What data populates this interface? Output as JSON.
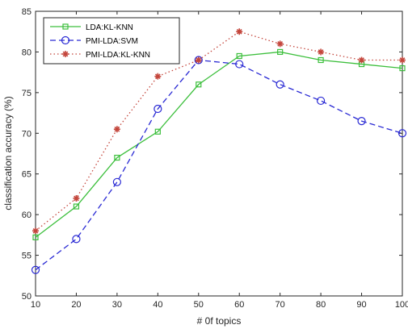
{
  "chart_data": {
    "type": "line",
    "xlabel": "# 0f topics",
    "ylabel": "classification accuracy (%)",
    "xlim": [
      10,
      100
    ],
    "ylim": [
      50,
      85
    ],
    "x": [
      10,
      20,
      30,
      40,
      50,
      60,
      70,
      80,
      90,
      100
    ],
    "x_ticks": [
      "10",
      "20",
      "30",
      "40",
      "50",
      "60",
      "70",
      "80",
      "90",
      "100"
    ],
    "y_ticks": [
      "50",
      "55",
      "60",
      "65",
      "70",
      "75",
      "80",
      "85"
    ],
    "y_tick_values": [
      50,
      55,
      60,
      65,
      70,
      75,
      80,
      85
    ],
    "grid": false,
    "legend_position": "top-left",
    "series": [
      {
        "name": "LDA:KL-KNN",
        "values": [
          57.2,
          61.0,
          67.0,
          70.2,
          76.0,
          79.5,
          80.0,
          79.0,
          78.5,
          78.0
        ],
        "color": "#3cbf3c",
        "dash": "solid",
        "marker": "square"
      },
      {
        "name": "PMI-LDA:SVM",
        "values": [
          53.2,
          57.0,
          64.0,
          73.0,
          79.0,
          78.5,
          76.0,
          74.0,
          71.5,
          70.0
        ],
        "color": "#2a2ad4",
        "dash": "dashed",
        "marker": "circle"
      },
      {
        "name": "PMI-LDA:KL-KNN",
        "values": [
          58.0,
          62.0,
          70.5,
          77.0,
          79.0,
          82.5,
          81.0,
          80.0,
          79.0,
          79.0
        ],
        "color": "#c4463c",
        "dash": "dotted",
        "marker": "asterisk"
      }
    ]
  }
}
